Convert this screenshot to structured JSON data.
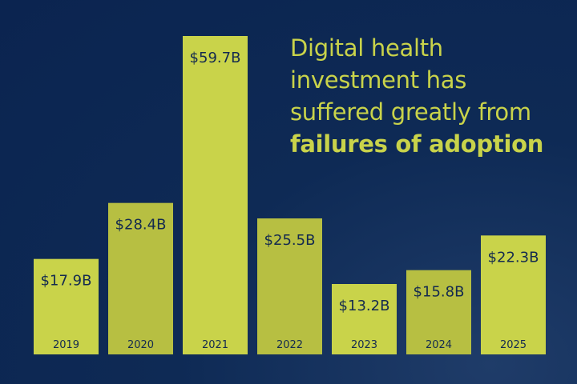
{
  "headline": {
    "line1": "Digital health",
    "line2": "investment has",
    "line3": "suffered greatly from",
    "line4_bold": "failures of adoption"
  },
  "colors": {
    "background": "#0e2a55",
    "bar_light": "#c9d34a",
    "bar_dark": "#b7bf42",
    "text_dark": "#142a4f"
  },
  "chart_data": {
    "type": "bar",
    "title": "Digital health investment has suffered greatly from failures of adoption",
    "categories": [
      "2019",
      "2020",
      "2021",
      "2022",
      "2023",
      "2024",
      "2025"
    ],
    "values": [
      17.9,
      28.4,
      59.7,
      25.5,
      13.2,
      15.8,
      22.3
    ],
    "value_labels": [
      "$17.9B",
      "$28.4B",
      "$59.7B",
      "$25.5B",
      "$13.2B",
      "$15.8B",
      "$22.3B"
    ],
    "unit": "USD billions",
    "xlabel": "",
    "ylabel": "",
    "ylim": [
      0,
      60
    ],
    "grid": false,
    "legend": "none"
  }
}
